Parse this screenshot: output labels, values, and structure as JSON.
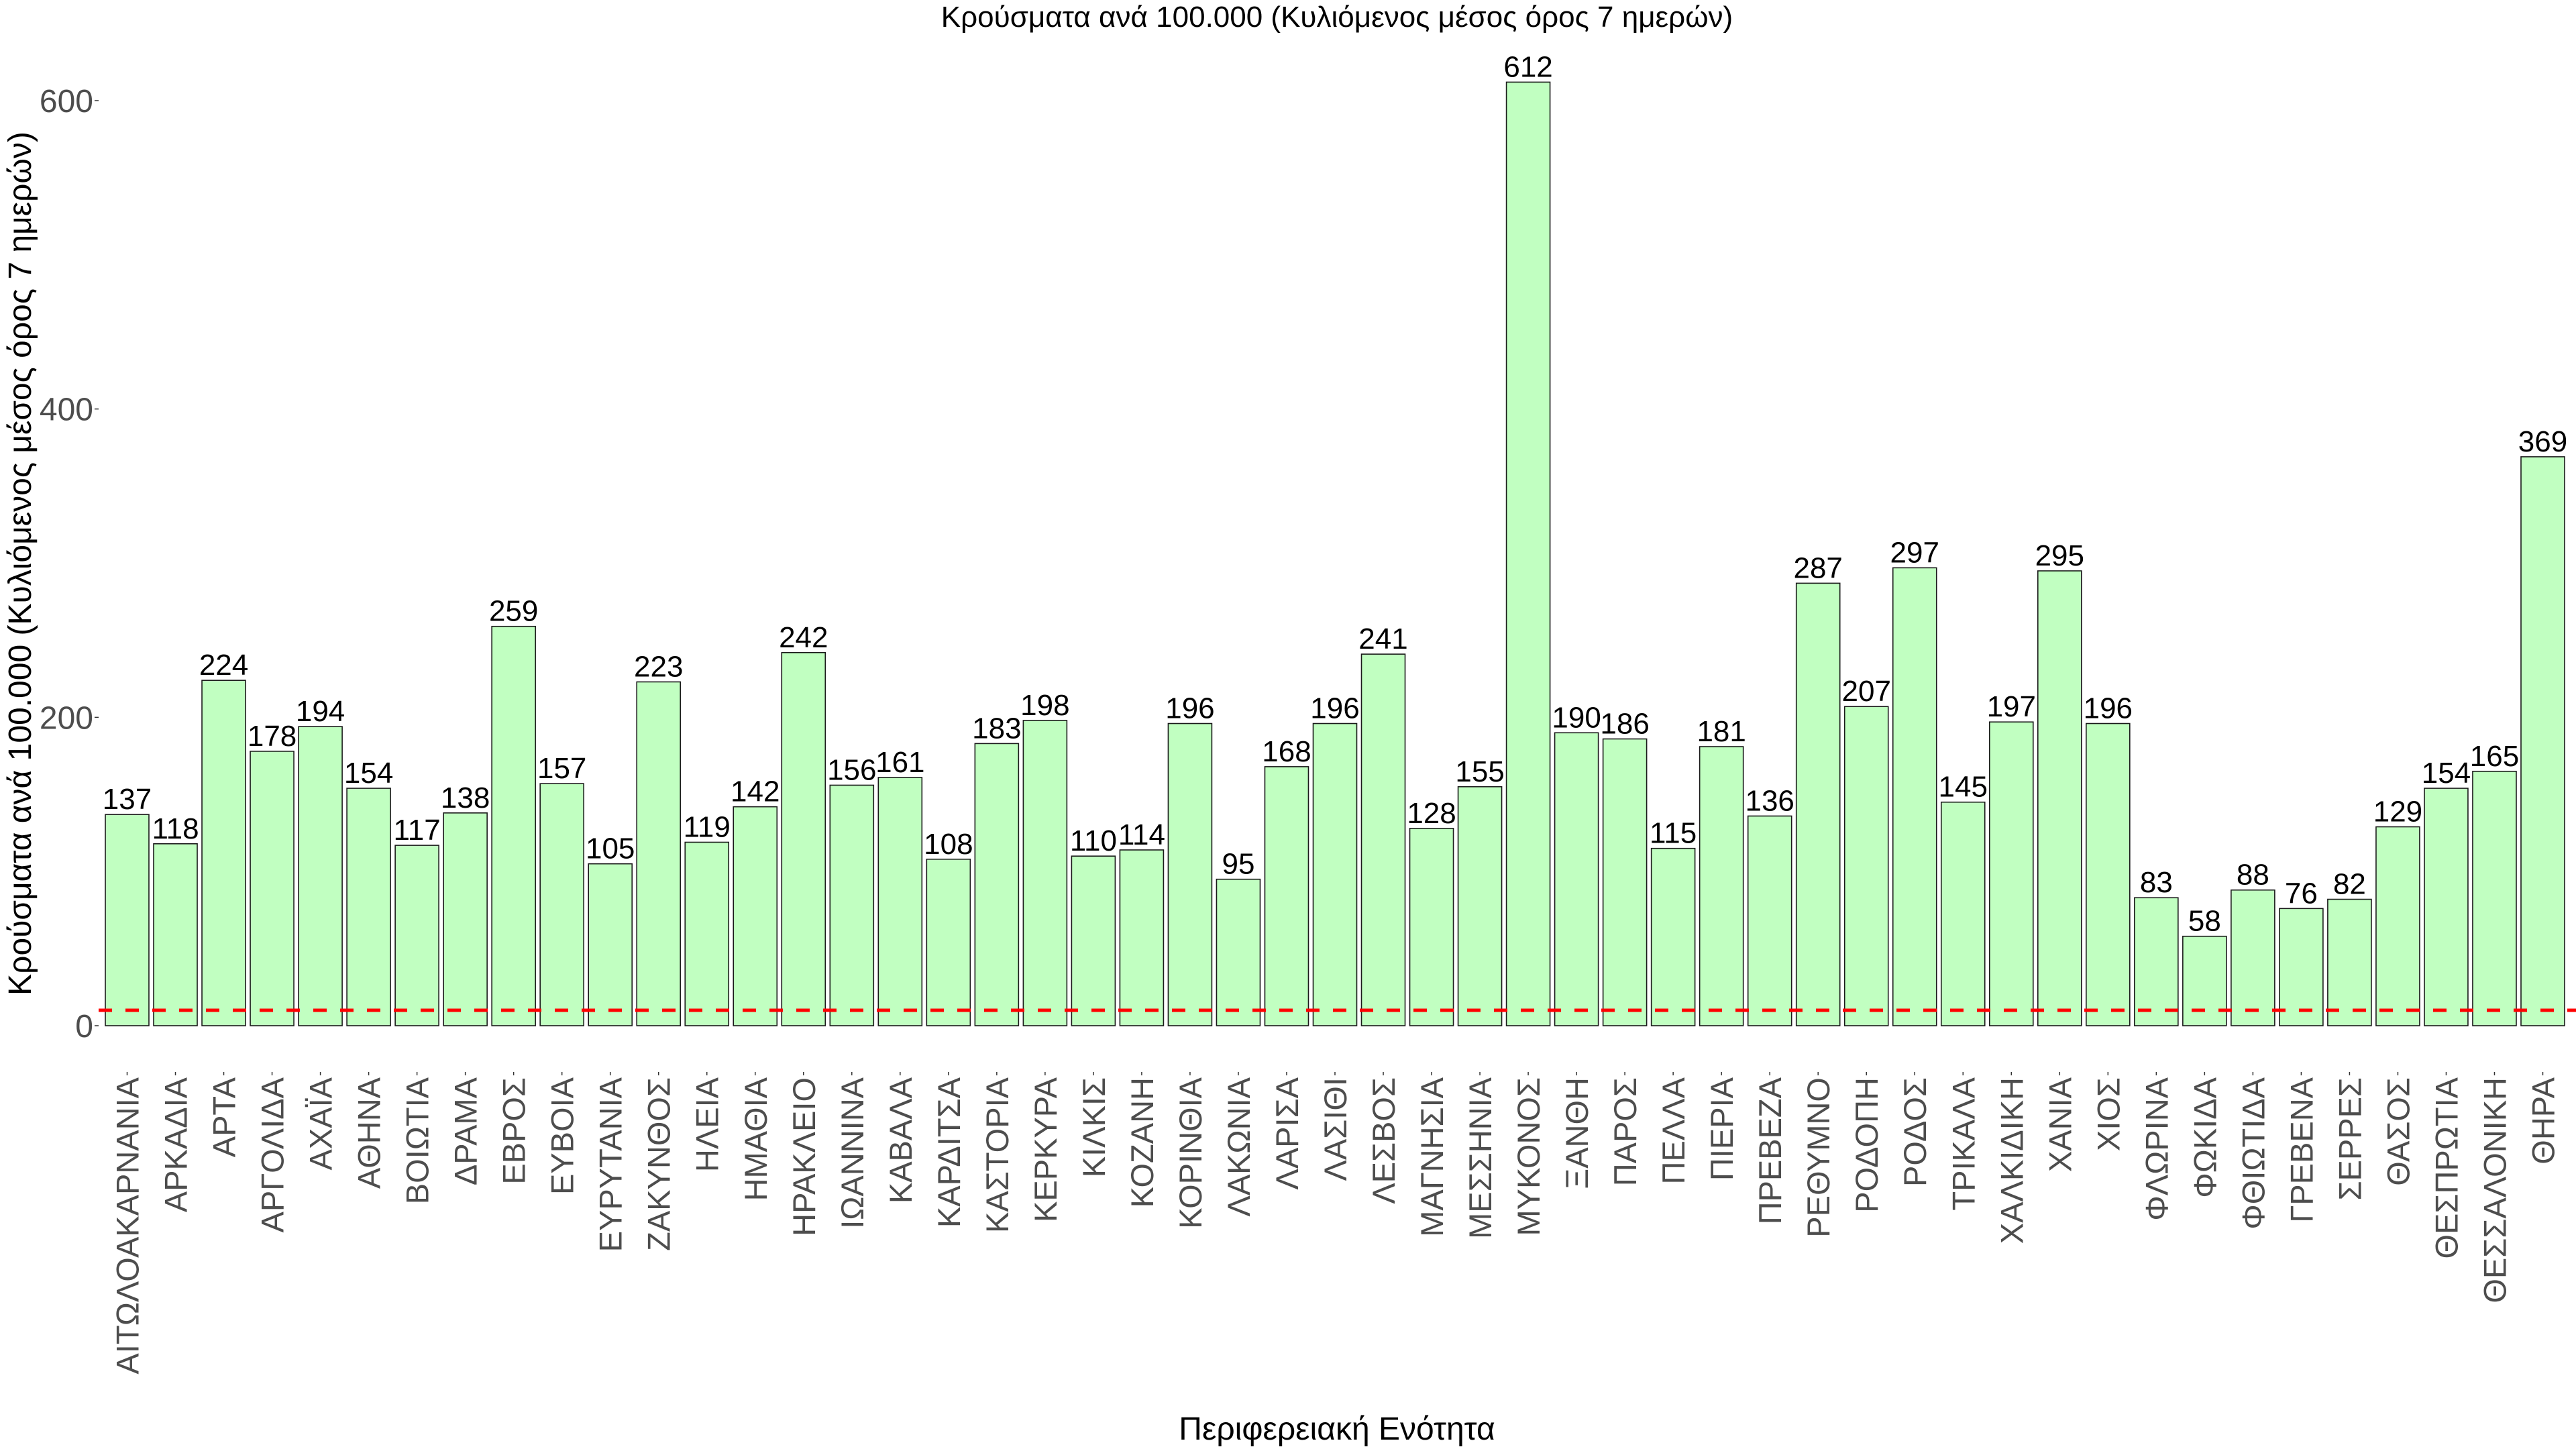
{
  "chart_data": {
    "type": "bar",
    "title": "Κρούσματα ανά 100.000 (Κυλιόμενος μέσος όρος 7 ημερών)",
    "xlabel": "Περιφερειακή Ενότητα",
    "ylabel": "Κρούσματα ανά 100.000 (Κυλιόμενος μέσος όρος 7 ημερών)",
    "ylim": [
      0,
      600
    ],
    "yticks": [
      0,
      200,
      400,
      600
    ],
    "ytick_labels": [
      "0",
      "200",
      "400",
      "600"
    ],
    "grid": false,
    "bar_color": "#C1FFC1",
    "bar_outline_color": "#1A1A1A",
    "reference_line": {
      "value": 10,
      "style": "dashed",
      "color": "#FF0000"
    },
    "categories": [
      "ΑΙΤΩΛΟΑΚΑΡΝΑΝΙΑ",
      "ΑΡΚΑΔΙΑ",
      "ΑΡΤΑ",
      "ΑΡΓΟΛΙΔΑ",
      "ΑΧΑΪΑ",
      "ΑΘΗΝΑ",
      "ΒΟΙΩΤΙΑ",
      "ΔΡΑΜΑ",
      "ΕΒΡΟΣ",
      "ΕΥΒΟΙΑ",
      "ΕΥΡΥΤΑΝΙΑ",
      "ΖΑΚΥΝΘΟΣ",
      "ΗΛΕΙΑ",
      "ΗΜΑΘΙΑ",
      "ΗΡΑΚΛΕΙΟ",
      "ΙΩΑΝΝΙΝΑ",
      "ΚΑΒΑΛΑ",
      "ΚΑΡΔΙΤΣΑ",
      "ΚΑΣΤΟΡΙΑ",
      "ΚΕΡΚΥΡΑ",
      "ΚΙΛΚΙΣ",
      "ΚΟΖΑΝΗ",
      "ΚΟΡΙΝΘΙΑ",
      "ΛΑΚΩΝΙΑ",
      "ΛΑΡΙΣΑ",
      "ΛΑΣΙΘΙ",
      "ΛΕΣΒΟΣ",
      "ΜΑΓΝΗΣΙΑ",
      "ΜΕΣΣΗΝΙΑ",
      "ΜΥΚΟΝΟΣ",
      "ΞΑΝΘΗ",
      "ΠΑΡΟΣ",
      "ΠΕΛΛΑ",
      "ΠΙΕΡΙΑ",
      "ΠΡΕΒΕΖΑ",
      "ΡΕΘΥΜΝΟ",
      "ΡΟΔΟΠΗ",
      "ΡΟΔΟΣ",
      "ΤΡΙΚΑΛΑ",
      "ΧΑΛΚΙΔΙΚΗ",
      "ΧΑΝΙΑ",
      "ΧΙΟΣ",
      "ΦΛΩΡΙΝΑ",
      "ΦΩΚΙΔΑ",
      "ΦΘΙΩΤΙΔΑ",
      "ΓΡΕΒΕΝΑ",
      "ΣΕΡΡΕΣ",
      "ΘΑΣΟΣ",
      "ΘΕΣΠΡΩΤΙΑ",
      "ΘΕΣΣΑΛΟΝΙΚΗ",
      "ΘΗΡΑ"
    ],
    "values": [
      137,
      118,
      224,
      178,
      194,
      154,
      117,
      138,
      259,
      157,
      105,
      223,
      119,
      142,
      242,
      156,
      161,
      108,
      183,
      198,
      110,
      114,
      196,
      95,
      168,
      196,
      241,
      128,
      155,
      612,
      190,
      186,
      115,
      181,
      136,
      287,
      207,
      297,
      145,
      197,
      295,
      196,
      83,
      58,
      88,
      76,
      82,
      129,
      154,
      165,
      369
    ]
  }
}
